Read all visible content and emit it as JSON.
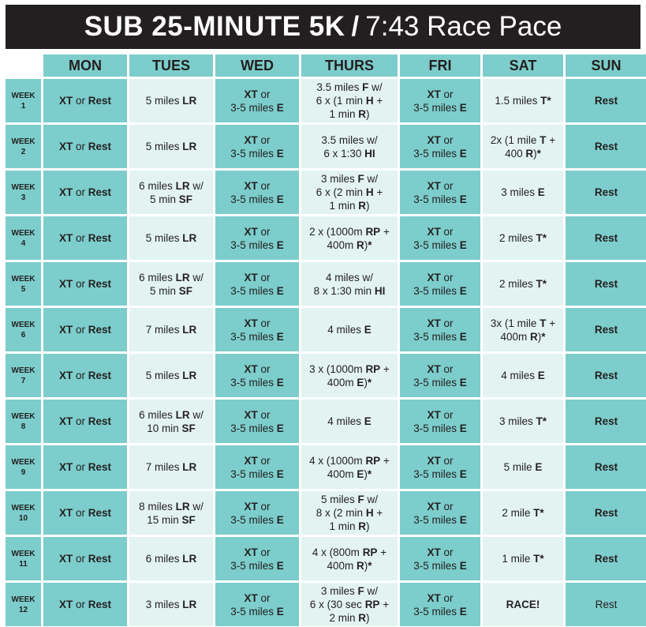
{
  "title": {
    "main": "SUB 25-MINUTE 5K",
    "separator": "/",
    "subtitle": "7:43 Race Pace"
  },
  "days": [
    "MON",
    "TUES",
    "WED",
    "THURS",
    "FRI",
    "SAT",
    "SUN"
  ],
  "colors": {
    "header_bar": "#231f20",
    "dark_teal": "#7ccdcb",
    "light_teal": "#e2f3f2"
  },
  "weeks": [
    {
      "label": [
        "WEEK",
        "1"
      ],
      "cells": [
        [
          "<b>XT</b> or <b>Rest</b>"
        ],
        [
          "5 miles <b>LR</b>"
        ],
        [
          "<b>XT</b> or",
          "3-5 miles <b>E</b>"
        ],
        [
          "3.5 miles <b>F</b> w/",
          "6 x (1 min <b>H</b> +",
          "1 min <b>R</b>)"
        ],
        [
          "<b>XT</b> or",
          "3-5 miles <b>E</b>"
        ],
        [
          "1.5 miles <b>T*</b>"
        ],
        [
          "<b>Rest</b>"
        ]
      ]
    },
    {
      "label": [
        "WEEK",
        "2"
      ],
      "cells": [
        [
          "<b>XT</b> or <b>Rest</b>"
        ],
        [
          "5 miles <b>LR</b>"
        ],
        [
          "<b>XT</b> or",
          "3-5 miles <b>E</b>"
        ],
        [
          "3.5 miles w/",
          "6 x 1:30 <b>HI</b>"
        ],
        [
          "<b>XT</b> or",
          "3-5 miles <b>E</b>"
        ],
        [
          "2x (1 mile <b>T</b> +",
          "400 <b>R</b>)<b>*</b>"
        ],
        [
          "<b>Rest</b>"
        ]
      ]
    },
    {
      "label": [
        "WEEK",
        "3"
      ],
      "cells": [
        [
          "<b>XT</b> or <b>Rest</b>"
        ],
        [
          "6 miles <b>LR</b> w/",
          "5 min <b>SF</b>"
        ],
        [
          "<b>XT</b> or",
          "3-5 miles <b>E</b>"
        ],
        [
          "3 miles <b>F</b> w/",
          "6 x (2 min <b>H</b> +",
          "1 min <b>R</b>)"
        ],
        [
          "<b>XT</b> or",
          "3-5 miles <b>E</b>"
        ],
        [
          "3 miles <b>E</b>"
        ],
        [
          "<b>Rest</b>"
        ]
      ]
    },
    {
      "label": [
        "WEEK",
        "4"
      ],
      "cells": [
        [
          "<b>XT</b> or <b>Rest</b>"
        ],
        [
          "5 miles <b>LR</b>"
        ],
        [
          "<b>XT</b> or",
          "3-5 miles <b>E</b>"
        ],
        [
          "2 x (1000m <b>RP</b> +",
          "400m <b>R</b>)<b>*</b>"
        ],
        [
          "<b>XT</b> or",
          "3-5 miles <b>E</b>"
        ],
        [
          "2 miles <b>T*</b>"
        ],
        [
          "<b>Rest</b>"
        ]
      ]
    },
    {
      "label": [
        "WEEK",
        "5"
      ],
      "cells": [
        [
          "<b>XT</b> or <b>Rest</b>"
        ],
        [
          "6 miles <b>LR</b> w/",
          "5 min <b>SF</b>"
        ],
        [
          "<b>XT</b> or",
          "3-5 miles <b>E</b>"
        ],
        [
          "4 miles w/",
          "8 x 1:30 min <b>HI</b>"
        ],
        [
          "<b>XT</b> or",
          "3-5 miles <b>E</b>"
        ],
        [
          "2 miles <b>T*</b>"
        ],
        [
          "<b>Rest</b>"
        ]
      ]
    },
    {
      "label": [
        "WEEK",
        "6"
      ],
      "cells": [
        [
          "<b>XT</b> or <b>Rest</b>"
        ],
        [
          "7 miles <b>LR</b>"
        ],
        [
          "<b>XT</b> or",
          "3-5 miles <b>E</b>"
        ],
        [
          "4 miles <b>E</b>"
        ],
        [
          "<b>XT</b> or",
          "3-5 miles <b>E</b>"
        ],
        [
          "3x (1 mile <b>T</b> +",
          "400m <b>R</b>)<b>*</b>"
        ],
        [
          "<b>Rest</b>"
        ]
      ]
    },
    {
      "label": [
        "WEEK",
        "7"
      ],
      "cells": [
        [
          "<b>XT</b> or <b>Rest</b>"
        ],
        [
          "5 miles <b>LR</b>"
        ],
        [
          "<b>XT</b> or",
          "3-5 miles <b>E</b>"
        ],
        [
          "3 x (1000m <b>RP</b> +",
          "400m <b>E</b>)<b>*</b>"
        ],
        [
          "<b>XT</b> or",
          "3-5 miles <b>E</b>"
        ],
        [
          "4 miles <b>E</b>"
        ],
        [
          "<b>Rest</b>"
        ]
      ]
    },
    {
      "label": [
        "WEEK",
        "8"
      ],
      "cells": [
        [
          "<b>XT</b> or <b>Rest</b>"
        ],
        [
          "6 miles <b>LR</b> w/",
          "10 min <b>SF</b>"
        ],
        [
          "<b>XT</b> or",
          "3-5 miles <b>E</b>"
        ],
        [
          "4 miles <b>E</b>"
        ],
        [
          "<b>XT</b> or",
          "3-5 miles <b>E</b>"
        ],
        [
          "3 miles <b>T*</b>"
        ],
        [
          "<b>Rest</b>"
        ]
      ]
    },
    {
      "label": [
        "WEEK",
        "9"
      ],
      "cells": [
        [
          "<b>XT</b> or <b>Rest</b>"
        ],
        [
          "7 miles <b>LR</b>"
        ],
        [
          "<b>XT</b> or",
          "3-5 miles <b>E</b>"
        ],
        [
          "4 x (1000m <b>RP</b> +",
          "400m <b>E</b>)<b>*</b>"
        ],
        [
          "<b>XT</b> or",
          "3-5 miles <b>E</b>"
        ],
        [
          "5 mile <b>E</b>"
        ],
        [
          "<b>Rest</b>"
        ]
      ]
    },
    {
      "label": [
        "WEEK",
        "10"
      ],
      "cells": [
        [
          "<b>XT</b> or <b>Rest</b>"
        ],
        [
          "8 miles <b>LR</b> w/",
          "15 min <b>SF</b>"
        ],
        [
          "<b>XT</b> or",
          "3-5 miles <b>E</b>"
        ],
        [
          "5 miles <b>F</b> w/",
          "8 x (2 min <b>H</b> +",
          "1 min <b>R</b>)"
        ],
        [
          "<b>XT</b> or",
          "3-5 miles <b>E</b>"
        ],
        [
          "2 mile <b>T*</b>"
        ],
        [
          "<b>Rest</b>"
        ]
      ]
    },
    {
      "label": [
        "WEEK",
        "11"
      ],
      "cells": [
        [
          "<b>XT</b> or <b>Rest</b>"
        ],
        [
          "6 miles <b>LR</b>"
        ],
        [
          "<b>XT</b> or",
          "3-5 miles <b>E</b>"
        ],
        [
          "4 x (800m <b>RP</b> +",
          "400m <b>R</b>)<b>*</b>"
        ],
        [
          "<b>XT</b> or",
          "3-5 miles <b>E</b>"
        ],
        [
          "1 mile <b>T*</b>"
        ],
        [
          "<b>Rest</b>"
        ]
      ]
    },
    {
      "label": [
        "WEEK",
        "12"
      ],
      "cells": [
        [
          "<b>XT</b> or <b>Rest</b>"
        ],
        [
          "3 miles <b>LR</b>"
        ],
        [
          "<b>XT</b> or",
          "3-5 miles <b>E</b>"
        ],
        [
          "3 miles <b>F</b> w/",
          "6 x (30 sec <b>RP</b> +",
          "2 min <b>R</b>)"
        ],
        [
          "<b>XT</b> or",
          "3-5 miles <b>E</b>"
        ],
        [
          "<b>RACE!</b>"
        ],
        [
          "Rest"
        ]
      ]
    }
  ]
}
